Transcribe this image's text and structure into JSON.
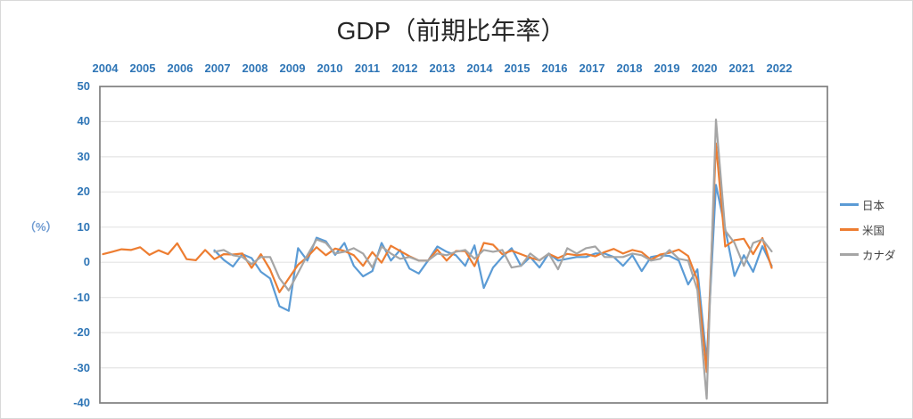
{
  "title": "GDP（前期比年率）",
  "y_axis": {
    "unit_label": "（%）",
    "ticks": [
      50,
      40,
      30,
      20,
      10,
      0,
      -10,
      -20,
      -30,
      -40
    ],
    "min": -40,
    "max": 50
  },
  "x_axis": {
    "years": [
      "2004",
      "2005",
      "2006",
      "2007",
      "2008",
      "2009",
      "2010",
      "2011",
      "2012",
      "2013",
      "2014",
      "2015",
      "2016",
      "2017",
      "2018",
      "2019",
      "2020",
      "2021",
      "2022"
    ]
  },
  "colors": {
    "axis_labels": "#2E75B6",
    "unit_label": "#6F9BD1",
    "gridline": "#E4E4E4",
    "plot_border": "#7F7F7F",
    "title_text": "#262626"
  },
  "chart_data": {
    "type": "line",
    "title": "GDP（前期比年率）",
    "ylabel": "（%）",
    "ylim": [
      -40,
      50
    ],
    "grid": true,
    "legend_position": "right",
    "x": [
      "2004Q1",
      "2004Q2",
      "2004Q3",
      "2004Q4",
      "2005Q1",
      "2005Q2",
      "2005Q3",
      "2005Q4",
      "2006Q1",
      "2006Q2",
      "2006Q3",
      "2006Q4",
      "2007Q1",
      "2007Q2",
      "2007Q3",
      "2007Q4",
      "2008Q1",
      "2008Q2",
      "2008Q3",
      "2008Q4",
      "2009Q1",
      "2009Q2",
      "2009Q3",
      "2009Q4",
      "2010Q1",
      "2010Q2",
      "2010Q3",
      "2010Q4",
      "2011Q1",
      "2011Q2",
      "2011Q3",
      "2011Q4",
      "2012Q1",
      "2012Q2",
      "2012Q3",
      "2012Q4",
      "2013Q1",
      "2013Q2",
      "2013Q3",
      "2013Q4",
      "2014Q1",
      "2014Q2",
      "2014Q3",
      "2014Q4",
      "2015Q1",
      "2015Q2",
      "2015Q3",
      "2015Q4",
      "2016Q1",
      "2016Q2",
      "2016Q3",
      "2016Q4",
      "2017Q1",
      "2017Q2",
      "2017Q3",
      "2017Q4",
      "2018Q1",
      "2018Q2",
      "2018Q3",
      "2018Q4",
      "2019Q1",
      "2019Q2",
      "2019Q3",
      "2019Q4",
      "2020Q1",
      "2020Q2",
      "2020Q3",
      "2020Q4",
      "2021Q1",
      "2021Q2",
      "2021Q3",
      "2021Q4",
      "2022Q1"
    ],
    "series": [
      {
        "key": "japan",
        "name": "日本",
        "color": "#5B9BD5",
        "start": "2007Q1",
        "values": [
          3.4,
          0.7,
          -1.2,
          2.3,
          1.2,
          -2.7,
          -4.6,
          -12.5,
          -13.8,
          4.0,
          0.5,
          7.0,
          6.0,
          2.1,
          5.5,
          -1.0,
          -4.0,
          -2.5,
          5.5,
          0.5,
          3.5,
          -1.8,
          -3.2,
          0.5,
          4.5,
          3.0,
          2.0,
          -1.0,
          4.8,
          -7.3,
          -1.5,
          1.5,
          4.0,
          -1.0,
          1.5,
          -1.5,
          2.5,
          0.5,
          1.0,
          1.5,
          1.5,
          2.5,
          2.5,
          1.5,
          -1.0,
          2.0,
          -2.5,
          1.5,
          2.0,
          1.8,
          0.5,
          -6.3,
          -2.0,
          -28.1,
          22.0,
          9.5,
          -3.9,
          2.0,
          -2.7,
          4.6,
          -1.0
        ]
      },
      {
        "key": "us",
        "name": "米国",
        "color": "#ED7D31",
        "start": "2004Q1",
        "values": [
          2.3,
          3.0,
          3.7,
          3.5,
          4.3,
          2.1,
          3.4,
          2.3,
          5.4,
          0.9,
          0.6,
          3.5,
          0.9,
          2.3,
          2.2,
          2.5,
          -1.6,
          2.3,
          -2.1,
          -8.5,
          -4.6,
          -0.7,
          1.5,
          4.3,
          2.0,
          3.9,
          3.2,
          2.0,
          -1.0,
          2.9,
          -0.1,
          4.7,
          3.2,
          1.7,
          0.5,
          0.5,
          3.6,
          0.5,
          3.2,
          3.2,
          -1.1,
          5.5,
          5.0,
          2.3,
          3.3,
          2.3,
          1.3,
          0.6,
          2.4,
          1.2,
          2.4,
          2.0,
          2.3,
          1.7,
          2.9,
          3.8,
          2.5,
          3.5,
          2.9,
          0.7,
          2.2,
          2.7,
          3.6,
          1.8,
          -5.1,
          -31.2,
          33.8,
          4.5,
          6.3,
          6.7,
          2.3,
          6.9,
          -1.6
        ]
      },
      {
        "key": "canada",
        "name": "カナダ",
        "color": "#A5A5A5",
        "start": "2007Q1",
        "values": [
          3.0,
          3.5,
          2.0,
          1.5,
          -0.5,
          1.5,
          1.5,
          -4.5,
          -8.0,
          -3.0,
          2.0,
          6.5,
          5.5,
          2.5,
          3.0,
          4.0,
          2.5,
          -1.5,
          4.5,
          2.5,
          1.0,
          1.5,
          0.5,
          0.5,
          2.5,
          2.0,
          3.0,
          3.5,
          1.0,
          3.5,
          3.0,
          3.5,
          -1.5,
          -1.0,
          2.5,
          0.5,
          2.5,
          -2.0,
          4.0,
          2.5,
          4.0,
          4.5,
          1.5,
          1.5,
          1.5,
          2.5,
          2.0,
          0.5,
          1.0,
          3.5,
          1.0,
          0.5,
          -7.9,
          -38.8,
          40.6,
          9.0,
          5.5,
          -1.0,
          5.5,
          6.5,
          3.1
        ]
      }
    ]
  }
}
